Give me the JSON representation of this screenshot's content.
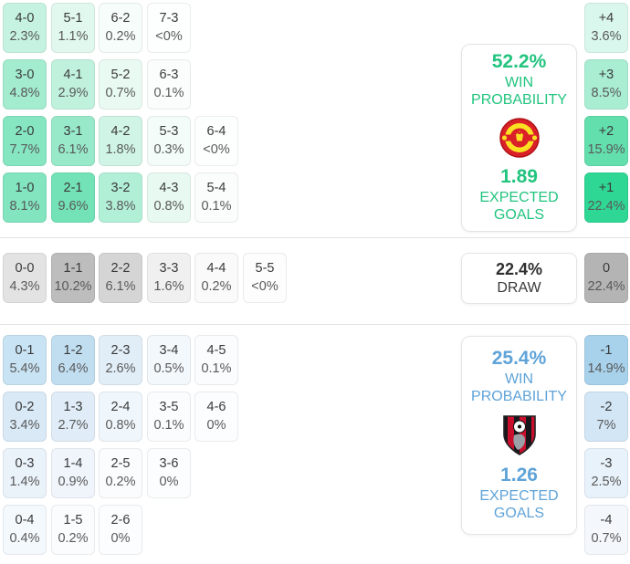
{
  "colors": {
    "home_accent": "#22c47f",
    "away_accent": "#5fa3d8",
    "home_cell_base": "#2fd795",
    "draw_cell_base": "#b4b4b4",
    "away_cell_base": "#a8d2ec",
    "score_text": "#3a3a3a",
    "pct_text": "#595959",
    "card_border": "#e4e4e4",
    "divider": "#e2e2e2"
  },
  "chart_data": {
    "type": "heatmap",
    "description": "Correct-score and goal-margin probability matrix",
    "sections": [
      {
        "id": "home",
        "outcome": "home-win",
        "panel": {
          "win_probability": "52.2%",
          "win_probability_label": "WIN PROBABILITY",
          "expected_goals": "1.89",
          "expected_goals_label": "EXPECTED GOALS",
          "crest_icon": "manchester-united-crest"
        },
        "rows": [
          [
            {
              "score": "4-0",
              "pct": "2.3%",
              "bg": "#c6f3e1"
            },
            {
              "score": "5-1",
              "pct": "1.1%",
              "bg": "#e1f8ee"
            },
            {
              "score": "6-2",
              "pct": "0.2%",
              "bg": "#f7fdfb"
            },
            {
              "score": "7-3",
              "pct": "<0%",
              "bg": "#fdfefe"
            }
          ],
          [
            {
              "score": "3-0",
              "pct": "4.8%",
              "bg": "#a4ecd0"
            },
            {
              "score": "4-1",
              "pct": "2.9%",
              "bg": "#c0f1dd"
            },
            {
              "score": "5-2",
              "pct": "0.7%",
              "bg": "#e9faf3"
            },
            {
              "score": "6-3",
              "pct": "0.1%",
              "bg": "#fafdfc"
            }
          ],
          [
            {
              "score": "2-0",
              "pct": "7.7%",
              "bg": "#86e6c1"
            },
            {
              "score": "3-1",
              "pct": "6.1%",
              "bg": "#98e9c9"
            },
            {
              "score": "4-2",
              "pct": "1.8%",
              "bg": "#d0f4e6"
            },
            {
              "score": "5-3",
              "pct": "0.3%",
              "bg": "#f3fcf8"
            },
            {
              "score": "6-4",
              "pct": "<0%",
              "bg": "#fdfefe"
            }
          ],
          [
            {
              "score": "1-0",
              "pct": "8.1%",
              "bg": "#82e5bf"
            },
            {
              "score": "2-1",
              "pct": "9.6%",
              "bg": "#73e2b7"
            },
            {
              "score": "3-2",
              "pct": "3.8%",
              "bg": "#b2efd7"
            },
            {
              "score": "4-3",
              "pct": "0.8%",
              "bg": "#e7f9f1"
            },
            {
              "score": "5-4",
              "pct": "0.1%",
              "bg": "#fafdfc"
            }
          ]
        ],
        "margins": [
          {
            "label": "+4",
            "pct": "3.6%",
            "bg": "#d9f7ec"
          },
          {
            "label": "+3",
            "pct": "8.5%",
            "bg": "#a9eed3"
          },
          {
            "label": "+2",
            "pct": "15.9%",
            "bg": "#63dfae"
          },
          {
            "label": "+1",
            "pct": "22.4%",
            "bg": "#2fd795"
          }
        ]
      },
      {
        "id": "draw",
        "outcome": "draw",
        "panel": {
          "probability": "22.4%",
          "label": "DRAW"
        },
        "rows": [
          [
            {
              "score": "0-0",
              "pct": "4.3%",
              "bg": "#e3e3e3"
            },
            {
              "score": "1-1",
              "pct": "10.2%",
              "bg": "#bdbdbd"
            },
            {
              "score": "2-2",
              "pct": "6.1%",
              "bg": "#d5d5d5"
            },
            {
              "score": "3-3",
              "pct": "1.6%",
              "bg": "#f0f0f0"
            },
            {
              "score": "4-4",
              "pct": "0.2%",
              "bg": "#fafafa"
            },
            {
              "score": "5-5",
              "pct": "<0%",
              "bg": "#fdfdfd"
            }
          ]
        ],
        "margins": [
          {
            "label": "0",
            "pct": "22.4%",
            "bg": "#b4b4b4"
          }
        ]
      },
      {
        "id": "away",
        "outcome": "away-win",
        "panel": {
          "win_probability": "25.4%",
          "win_probability_label": "WIN PROBABILITY",
          "expected_goals": "1.26",
          "expected_goals_label": "EXPECTED GOALS",
          "crest_icon": "afc-bournemouth-crest"
        },
        "rows": [
          [
            {
              "score": "0-1",
              "pct": "5.4%",
              "bg": "#c8e3f3"
            },
            {
              "score": "1-2",
              "pct": "6.4%",
              "bg": "#c1def1"
            },
            {
              "score": "2-3",
              "pct": "2.6%",
              "bg": "#e1eef8"
            },
            {
              "score": "3-4",
              "pct": "0.5%",
              "bg": "#f3f8fd"
            },
            {
              "score": "4-5",
              "pct": "0.1%",
              "bg": "#fafcfe"
            }
          ],
          [
            {
              "score": "0-2",
              "pct": "3.4%",
              "bg": "#d9e9f6"
            },
            {
              "score": "1-3",
              "pct": "2.7%",
              "bg": "#e0edf8"
            },
            {
              "score": "2-4",
              "pct": "0.8%",
              "bg": "#f0f7fc"
            },
            {
              "score": "3-5",
              "pct": "0.1%",
              "bg": "#fafcfe"
            },
            {
              "score": "4-6",
              "pct": "0%",
              "bg": "#fcfdfe"
            }
          ],
          [
            {
              "score": "0-3",
              "pct": "1.4%",
              "bg": "#eaf2fa"
            },
            {
              "score": "1-4",
              "pct": "0.9%",
              "bg": "#eff5fb"
            },
            {
              "score": "2-5",
              "pct": "0.2%",
              "bg": "#fafcfe"
            },
            {
              "score": "3-6",
              "pct": "0%",
              "bg": "#fcfdfe"
            }
          ],
          [
            {
              "score": "0-4",
              "pct": "0.4%",
              "bg": "#f4f9fd"
            },
            {
              "score": "1-5",
              "pct": "0.2%",
              "bg": "#fafcfe"
            },
            {
              "score": "2-6",
              "pct": "0%",
              "bg": "#fcfdfe"
            }
          ]
        ],
        "margins": [
          {
            "label": "-1",
            "pct": "14.9%",
            "bg": "#a8d2ec"
          },
          {
            "label": "-2",
            "pct": "7%",
            "bg": "#d2e6f5"
          },
          {
            "label": "-3",
            "pct": "2.5%",
            "bg": "#e8f2fa"
          },
          {
            "label": "-4",
            "pct": "0.7%",
            "bg": "#f4f8fc"
          }
        ]
      }
    ]
  }
}
